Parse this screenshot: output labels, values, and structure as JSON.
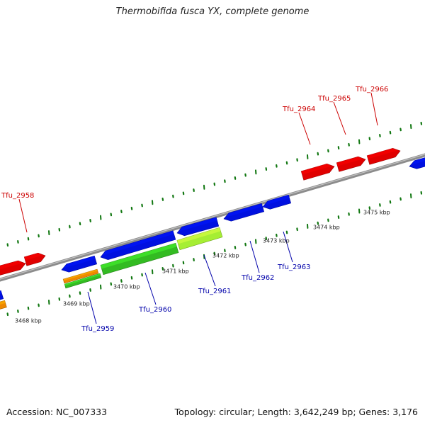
{
  "title": "Thermobifida fusca YX, complete genome",
  "footer": {
    "accession": "Accession: NC_007333",
    "summary": "Topology: circular; Length: 3,642,249 bp; Genes: 3,176"
  },
  "colors": {
    "forward_gene": "#e00000",
    "reverse_gene": "#0010e0",
    "forward_label": "#cc0000",
    "reverse_label": "#0000aa",
    "green_gene": "#33bb22",
    "lime_gene": "#a6ee33",
    "orange_gene": "#ee8800",
    "backbone": "#8a8a8a",
    "ticks": "#117711"
  },
  "kbp_ticks": [
    {
      "label": "3468 kbp"
    },
    {
      "label": "3469 kbp"
    },
    {
      "label": "3470 kbp"
    },
    {
      "label": "3471 kbp"
    },
    {
      "label": "3472 kbp"
    },
    {
      "label": "3473 kbp"
    },
    {
      "label": "3474 kbp"
    },
    {
      "label": "3475 kbp"
    }
  ],
  "forward_labels": [
    {
      "name": "Tfu_2958"
    },
    {
      "name": "Tfu_2964"
    },
    {
      "name": "Tfu_2965"
    },
    {
      "name": "Tfu_2966"
    }
  ],
  "reverse_labels": [
    {
      "name": "Tfu_2959"
    },
    {
      "name": "Tfu_2960"
    },
    {
      "name": "Tfu_2961"
    },
    {
      "name": "Tfu_2962"
    },
    {
      "name": "Tfu_2963"
    }
  ]
}
